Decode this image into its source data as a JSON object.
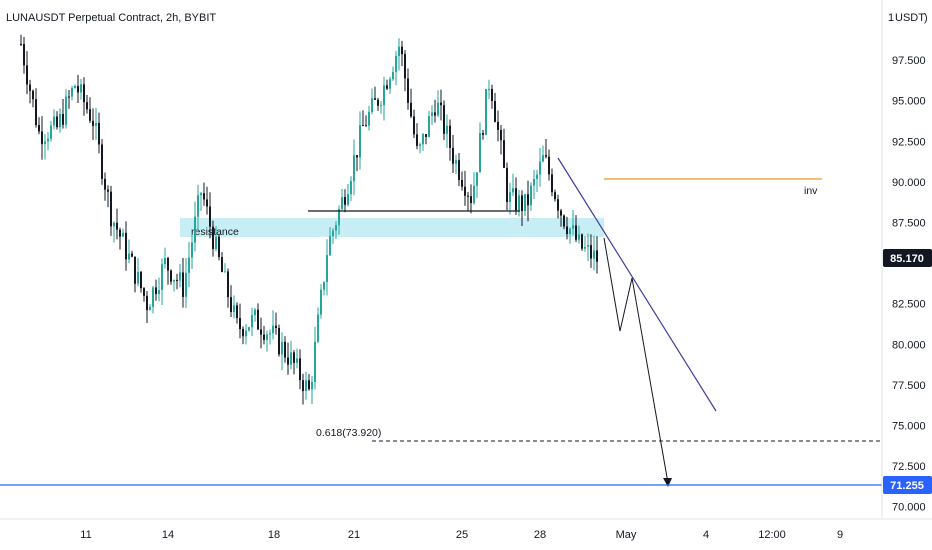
{
  "header": {
    "title": "LUNAUSDT Perpetual Contract, 2h, BYBIT",
    "currency_badge": "USDT"
  },
  "colors": {
    "bull": "#26a69a",
    "bear": "#131722",
    "resistance_zone": "#c8eef5",
    "trendline": "#3f3f9a",
    "inv_line": "#f7941d",
    "support_line": "#2962ff",
    "current_price_bg": "#131722"
  },
  "chart_data": {
    "type": "candlestick",
    "title": "LUNAUSDT Perpetual Contract, 2h, BYBIT",
    "ylim": [
      69.3,
      101.2
    ],
    "y_ticks": [
      "97.500",
      "95.000",
      "92.500",
      "90.000",
      "87.500",
      "85.000",
      "82.500",
      "80.000",
      "77.500",
      "75.000",
      "72.500",
      "70.000"
    ],
    "x_ticks": [
      "11",
      "14",
      "18",
      "21",
      "25",
      "28",
      "May",
      "4",
      "12:00",
      "9"
    ],
    "current_price": "85.170",
    "support_price": "71.255",
    "close_path": [
      {
        "x": "8",
        "y": 98.5
      },
      {
        "x": "9",
        "y": 93.0
      },
      {
        "x": "10",
        "y": 93.3
      },
      {
        "x": "10.5",
        "y": 96.0
      },
      {
        "x": "11",
        "y": 93.8
      },
      {
        "x": "11.5",
        "y": 88.0
      },
      {
        "x": "12",
        "y": 85.3
      },
      {
        "x": "12.5",
        "y": 82.5
      },
      {
        "x": "13",
        "y": 85.0
      },
      {
        "x": "13.5",
        "y": 83.5
      },
      {
        "x": "14",
        "y": 89.5
      },
      {
        "x": "14.5",
        "y": 85.0
      },
      {
        "x": "15",
        "y": 81.0
      },
      {
        "x": "16",
        "y": 81.5
      },
      {
        "x": "17",
        "y": 80.5
      },
      {
        "x": "17.5",
        "y": 79.0
      },
      {
        "x": "18",
        "y": 77.0
      },
      {
        "x": "18.5",
        "y": 86.0
      },
      {
        "x": "19",
        "y": 89.5
      },
      {
        "x": "20",
        "y": 93.5
      },
      {
        "x": "21",
        "y": 95.5
      },
      {
        "x": "21.5",
        "y": 98.5
      },
      {
        "x": "22",
        "y": 91.5
      },
      {
        "x": "23",
        "y": 95.0
      },
      {
        "x": "24",
        "y": 91.5
      },
      {
        "x": "25",
        "y": 89.0
      },
      {
        "x": "26",
        "y": 96.5
      },
      {
        "x": "26.5",
        "y": 89.0
      },
      {
        "x": "27",
        "y": 88.5
      },
      {
        "x": "28",
        "y": 91.5
      },
      {
        "x": "28.5",
        "y": 88.0
      },
      {
        "x": "29",
        "y": 86.0
      },
      {
        "x": "29.5",
        "y": 85.2
      }
    ],
    "annotations": [
      {
        "type": "zone",
        "label": "resistance",
        "from": 86.6,
        "to": 87.7
      },
      {
        "type": "hline",
        "label": "inv",
        "y": 90.0
      },
      {
        "type": "hline",
        "label": "0.618(73.920)",
        "y": 73.92,
        "style": "dashed"
      },
      {
        "type": "hline",
        "label": "71.255",
        "y": 71.255
      },
      {
        "type": "hline",
        "y": 88.1,
        "from_x": "19",
        "to_x": "27"
      },
      {
        "type": "trendline",
        "from": {
          "x": "28",
          "y": 91.5
        },
        "to": {
          "x": "May 3",
          "y": 75.8
        }
      },
      {
        "type": "projection",
        "points": [
          85.2,
          81.0,
          84.0,
          71.3
        ]
      }
    ]
  }
}
